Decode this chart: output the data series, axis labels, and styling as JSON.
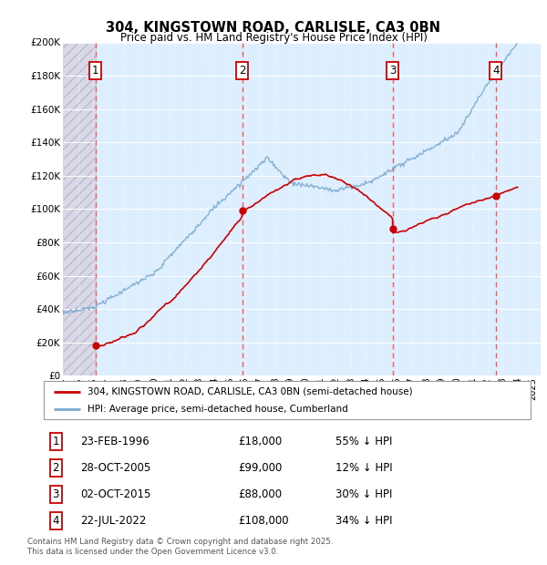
{
  "title": "304, KINGSTOWN ROAD, CARLISLE, CA3 0BN",
  "subtitle": "Price paid vs. HM Land Registry's House Price Index (HPI)",
  "legend_line1": "304, KINGSTOWN ROAD, CARLISLE, CA3 0BN (semi-detached house)",
  "legend_line2": "HPI: Average price, semi-detached house, Cumberland",
  "footer": "Contains HM Land Registry data © Crown copyright and database right 2025.\nThis data is licensed under the Open Government Licence v3.0.",
  "sales": [
    {
      "num": 1,
      "date": "23-FEB-1996",
      "price": "£18,000",
      "hpi": "55% ↓ HPI",
      "year": 1996.14
    },
    {
      "num": 2,
      "date": "28-OCT-2005",
      "price": "£99,000",
      "hpi": "12% ↓ HPI",
      "year": 2005.82
    },
    {
      "num": 3,
      "date": "02-OCT-2015",
      "price": "£88,000",
      "hpi": "30% ↓ HPI",
      "year": 2015.75
    },
    {
      "num": 4,
      "date": "22-JUL-2022",
      "price": "£108,000",
      "hpi": "34% ↓ HPI",
      "year": 2022.55
    }
  ],
  "sale_values": [
    18000,
    99000,
    88000,
    108000
  ],
  "xlim": [
    1994,
    2025.5
  ],
  "ylim": [
    0,
    200000
  ],
  "yticks": [
    0,
    20000,
    40000,
    60000,
    80000,
    100000,
    120000,
    140000,
    160000,
    180000,
    200000
  ],
  "xticks": [
    1994,
    1995,
    1996,
    1997,
    1998,
    1999,
    2000,
    2001,
    2002,
    2003,
    2004,
    2005,
    2006,
    2007,
    2008,
    2009,
    2010,
    2011,
    2012,
    2013,
    2014,
    2015,
    2016,
    2017,
    2018,
    2019,
    2020,
    2021,
    2022,
    2023,
    2024,
    2025
  ],
  "hpi_color": "#7aaad0",
  "sale_color": "#cc0000",
  "vline_color": "#ff5555",
  "bg_chart": "#ddeeff",
  "grid_color": "#ffffff",
  "annotation_box_color": "#cc0000"
}
